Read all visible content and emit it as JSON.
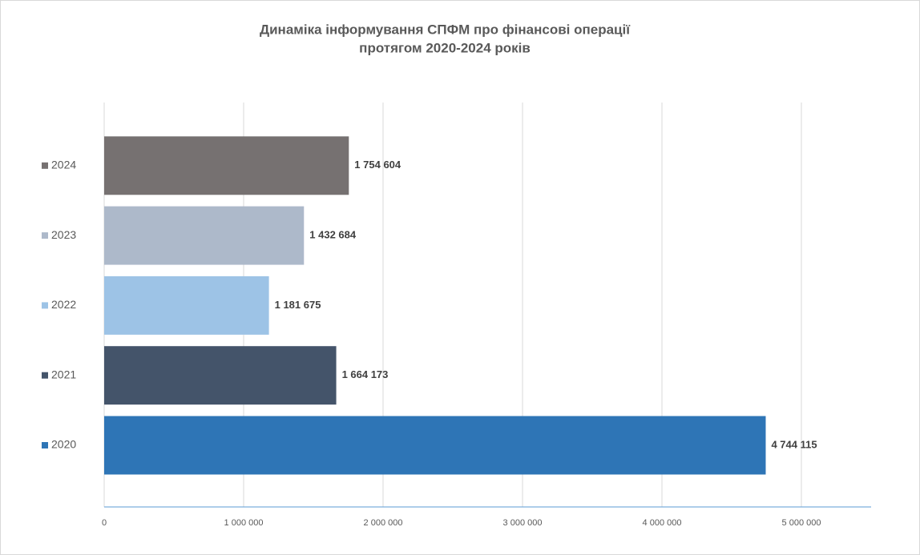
{
  "chart_data": {
    "type": "bar",
    "orientation": "horizontal",
    "title": [
      "Динаміка інформування СПФМ про фінансові операції",
      "протягом 2020-2024 років"
    ],
    "categories": [
      "2020",
      "2021",
      "2022",
      "2023",
      "2024"
    ],
    "values": [
      4744115,
      1664173,
      1181675,
      1432684,
      1754604
    ],
    "value_labels": [
      "4 744 115",
      "1 664 173",
      "1 181 675",
      "1 432 684",
      "1 754 604"
    ],
    "colors": [
      "#2e75b6",
      "#44546a",
      "#9dc3e6",
      "#adb9ca",
      "#767171"
    ],
    "xlim": [
      0,
      5500000
    ],
    "xticks": [
      0,
      {
        "value": 1000000,
        "label": "1 000 000"
      },
      {
        "value": 2000000,
        "label": "2 000 000"
      },
      {
        "value": 3000000,
        "label": "3 000 000"
      },
      {
        "value": 4000000,
        "label": "4 000 000"
      },
      {
        "value": 5000000,
        "label": "5 000 000"
      }
    ],
    "grid": true
  }
}
